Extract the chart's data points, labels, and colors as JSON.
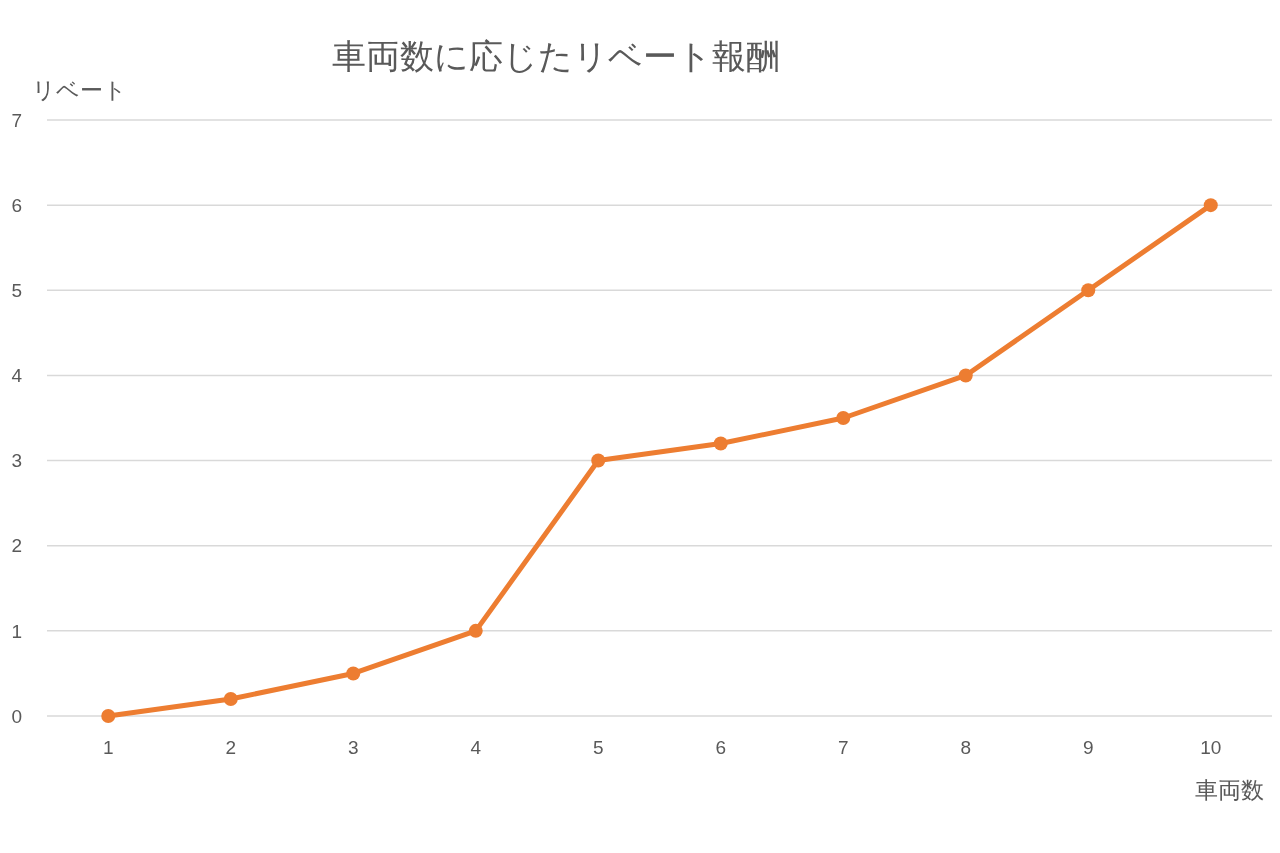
{
  "chart_data": {
    "type": "line",
    "title": "車両数に応じたリベート報酬",
    "xlabel": "車両数",
    "ylabel": "リベート",
    "categories": [
      "1",
      "2",
      "3",
      "4",
      "5",
      "6",
      "7",
      "8",
      "9",
      "10"
    ],
    "series": [
      {
        "color": "#ed7d31",
        "values": [
          0,
          0.2,
          0.5,
          1,
          3,
          3.2,
          3.5,
          4,
          5,
          6
        ]
      }
    ],
    "ylim": [
      0,
      7
    ],
    "yticks": [
      0,
      1,
      2,
      3,
      4,
      5,
      6,
      7
    ],
    "grid": "y",
    "marker": "circle",
    "line_style": "solid"
  }
}
